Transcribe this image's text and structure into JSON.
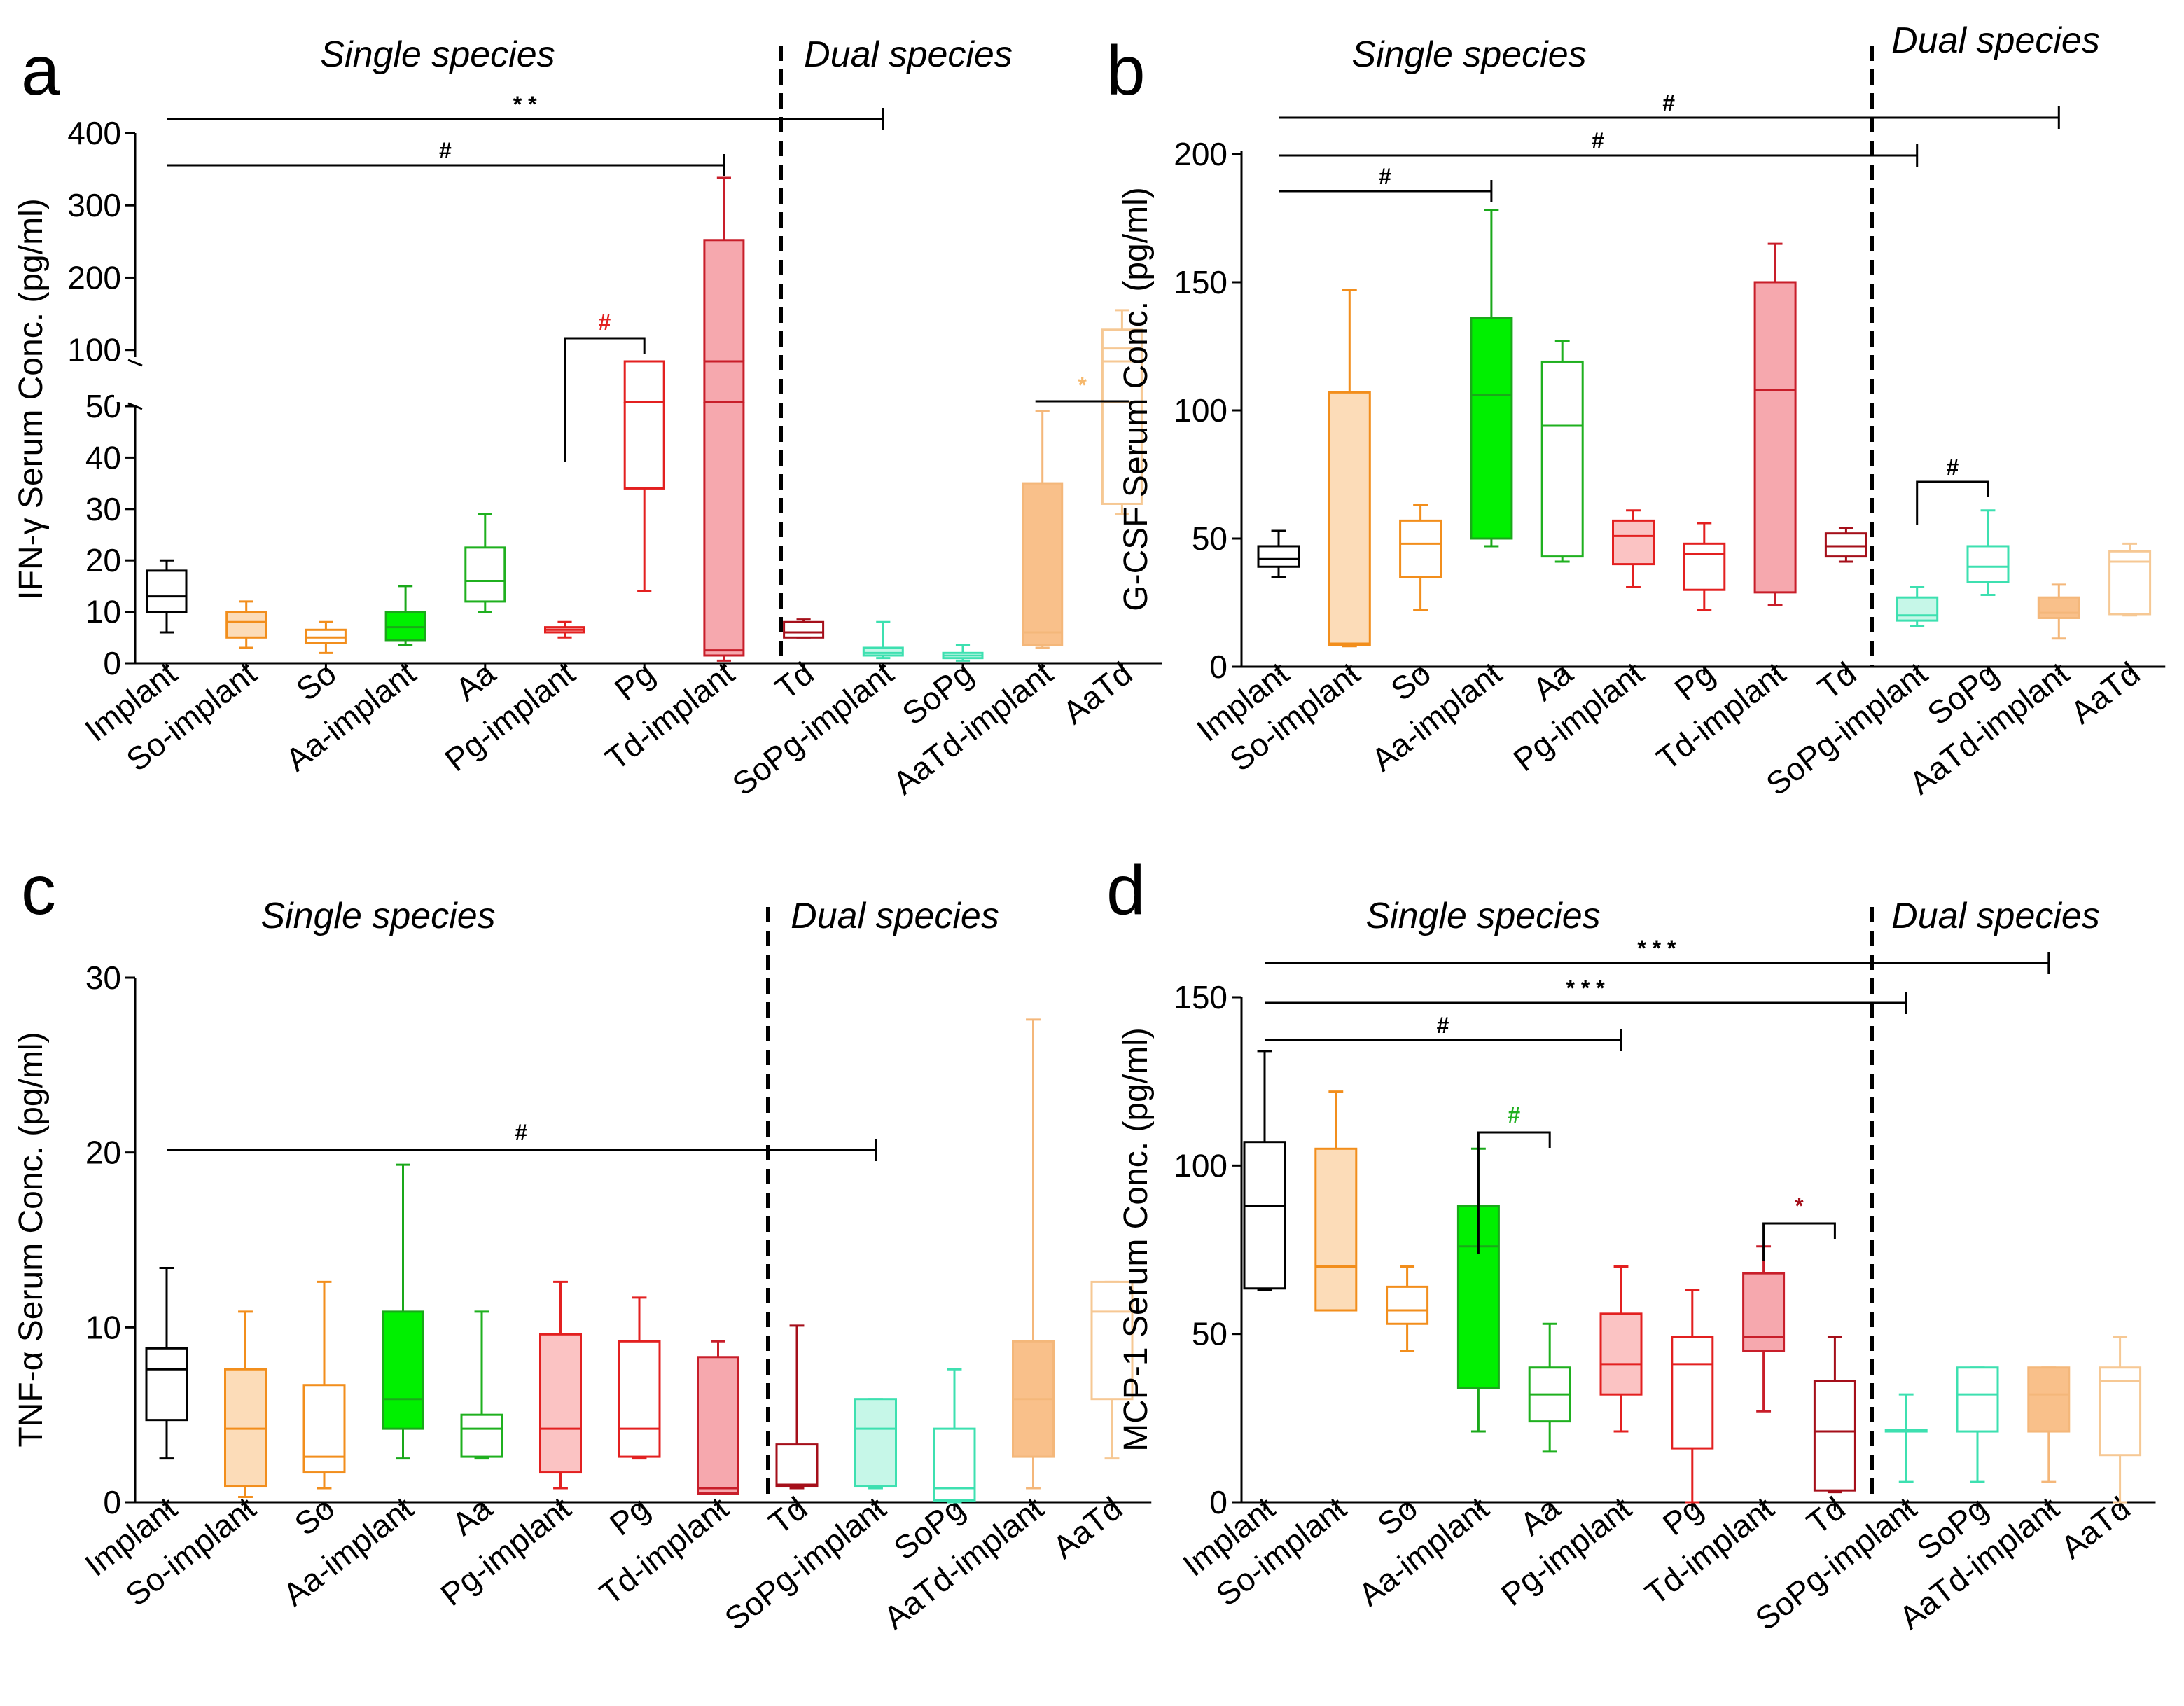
{
  "categories": [
    "Implant",
    "So-implant",
    "So",
    "Aa-implant",
    "Aa",
    "Pg-implant",
    "Pg",
    "Td-implant",
    "Td",
    "SoPg-implant",
    "SoPg",
    "AaTd-implant",
    "AaTd"
  ],
  "colors": {
    "Implant": {
      "stroke": "#000000",
      "fill": "none"
    },
    "So-implant": {
      "stroke": "#f28e1c",
      "fill": "#fcdcb8"
    },
    "So": {
      "stroke": "#f28e1c",
      "fill": "none"
    },
    "Aa-implant": {
      "stroke": "#1aa81a",
      "fill": "#00f000"
    },
    "Aa": {
      "stroke": "#1fb01f",
      "fill": "none"
    },
    "Pg-implant": {
      "stroke": "#e32020",
      "fill": "#fbc3c3"
    },
    "Pg": {
      "stroke": "#e32020",
      "fill": "none"
    },
    "Td-implant": {
      "stroke": "#c81e2a",
      "fill": "#f6a8ae"
    },
    "Td": {
      "stroke": "#a50f1a",
      "fill": "none"
    },
    "SoPg-implant": {
      "stroke": "#3de0b0",
      "fill": "#c6f7e8"
    },
    "SoPg": {
      "stroke": "#3de0b0",
      "fill": "none"
    },
    "AaTd-implant": {
      "stroke": "#f4b77a",
      "fill": "#f9c08a"
    },
    "AaTd": {
      "stroke": "#f6c894",
      "fill": "none"
    }
  },
  "chart_data": [
    {
      "panel_label": "a",
      "type": "box",
      "ylabel": "IFN-γ Serum Conc. (pg/ml)",
      "region_left": "Single species",
      "region_right": "Dual species",
      "broken_axis": true,
      "ylim_lower": [
        0,
        50
      ],
      "ylim_upper": [
        90,
        400
      ],
      "yticks_lower": [
        "0",
        "10",
        "20",
        "30",
        "40",
        "50"
      ],
      "yticks_upper": [
        "100",
        "200",
        "300",
        "400"
      ],
      "boxes": [
        {
          "min": 6,
          "q1": 10,
          "med": 13,
          "q3": 18,
          "max": 20
        },
        {
          "min": 3,
          "q1": 5,
          "med": 8,
          "q3": 10,
          "max": 12
        },
        {
          "min": 2,
          "q1": 4,
          "med": 5,
          "q3": 6.5,
          "max": 8
        },
        {
          "min": 3.5,
          "q1": 4.5,
          "med": 7,
          "q3": 10,
          "max": 15
        },
        {
          "min": 10,
          "q1": 12,
          "med": 16,
          "q3": 22.5,
          "max": 29
        },
        {
          "min": 5,
          "q1": 6,
          "med": 6.5,
          "q3": 7,
          "max": 8
        },
        {
          "min": 14,
          "q1": 34,
          "med": 80,
          "q3": 82,
          "max": 85
        },
        {
          "min": 0.5,
          "q1": 1.5,
          "med": 2.5,
          "q3": 252,
          "max": 338
        },
        {
          "min": 5,
          "q1": 5,
          "med": 6,
          "q3": 8,
          "max": 8.5
        },
        {
          "min": 1,
          "q1": 1.5,
          "med": 2,
          "q3": 3,
          "max": 8
        },
        {
          "min": 0.5,
          "q1": 1,
          "med": 1.5,
          "q3": 2,
          "max": 3.5
        },
        {
          "min": 3,
          "q1": 3.5,
          "med": 6,
          "q3": 35,
          "max": 49
        },
        {
          "min": 29,
          "q1": 31,
          "med": 102,
          "q3": 128,
          "max": 155
        }
      ],
      "comparisons": [
        {
          "label": "* *",
          "from": "Implant",
          "to": "SoPg-implant",
          "color": "#000000"
        },
        {
          "label": "#",
          "from": "Implant",
          "to": "Td-implant",
          "color": "#000000"
        },
        {
          "label": "#",
          "from": "Pg-implant",
          "to": "Pg",
          "color": "#e32020"
        },
        {
          "label": "*",
          "from": "AaTd-implant",
          "to": "AaTd",
          "color": "#f6b86c"
        }
      ]
    },
    {
      "panel_label": "b",
      "type": "box",
      "ylabel": "G-CSF Serum Conc. (pg/ml)",
      "region_left": "Single species",
      "region_right": "Dual species",
      "ylim": [
        0,
        200
      ],
      "yticks": [
        "0",
        "50",
        "100",
        "150",
        "200"
      ],
      "boxes": [
        {
          "min": 35,
          "q1": 39,
          "med": 42,
          "q3": 47,
          "max": 53
        },
        {
          "min": 8,
          "q1": 8.5,
          "med": 9,
          "q3": 107,
          "max": 147
        },
        {
          "min": 22,
          "q1": 35,
          "med": 48,
          "q3": 57,
          "max": 63
        },
        {
          "min": 47,
          "q1": 50,
          "med": 106,
          "q3": 136,
          "max": 178
        },
        {
          "min": 41,
          "q1": 43,
          "med": 94,
          "q3": 119,
          "max": 127
        },
        {
          "min": 31,
          "q1": 40,
          "med": 51,
          "q3": 57,
          "max": 61
        },
        {
          "min": 22,
          "q1": 30,
          "med": 44,
          "q3": 48,
          "max": 56
        },
        {
          "min": 24,
          "q1": 29,
          "med": 108,
          "q3": 150,
          "max": 165
        },
        {
          "min": 41,
          "q1": 43,
          "med": 47,
          "q3": 52,
          "max": 54
        },
        {
          "min": 16,
          "q1": 18,
          "med": 20,
          "q3": 27,
          "max": 31
        },
        {
          "min": 28,
          "q1": 33,
          "med": 39,
          "q3": 47,
          "max": 61
        },
        {
          "min": 11,
          "q1": 19,
          "med": 21,
          "q3": 27,
          "max": 32
        },
        {
          "min": 20,
          "q1": 20.5,
          "med": 41,
          "q3": 45,
          "max": 48
        }
      ],
      "comparisons": [
        {
          "label": "#",
          "from": "Implant",
          "to": "AaTd-implant",
          "color": "#000000"
        },
        {
          "label": "#",
          "from": "Implant",
          "to": "SoPg-implant",
          "color": "#000000"
        },
        {
          "label": "#",
          "from": "Implant",
          "to": "Aa-implant",
          "color": "#000000"
        },
        {
          "label": "#",
          "from": "SoPg-implant",
          "to": "SoPg",
          "color": "#000000"
        }
      ]
    },
    {
      "panel_label": "c",
      "type": "box",
      "ylabel": "TNF-α Serum Conc. (pg/ml)",
      "region_left": "Single species",
      "region_right": "Dual species",
      "ylim": [
        0,
        30
      ],
      "yticks": [
        "0",
        "10",
        "20",
        "30"
      ],
      "boxes": [
        {
          "min": 2.5,
          "q1": 4.7,
          "med": 7.6,
          "q3": 8.8,
          "max": 13.4
        },
        {
          "min": 0.3,
          "q1": 0.9,
          "med": 4.2,
          "q3": 7.6,
          "max": 10.9
        },
        {
          "min": 0.8,
          "q1": 1.7,
          "med": 2.6,
          "q3": 6.7,
          "max": 12.6
        },
        {
          "min": 2.5,
          "q1": 4.2,
          "med": 5.9,
          "q3": 10.9,
          "max": 19.3
        },
        {
          "min": 2.5,
          "q1": 2.6,
          "med": 4.2,
          "q3": 5,
          "max": 10.9
        },
        {
          "min": 0.8,
          "q1": 1.7,
          "med": 4.2,
          "q3": 9.6,
          "max": 12.6
        },
        {
          "min": 2.5,
          "q1": 2.6,
          "med": 4.2,
          "q3": 9.2,
          "max": 11.7
        },
        {
          "min": 0.5,
          "q1": 0.5,
          "med": 0.8,
          "q3": 8.3,
          "max": 9.2
        },
        {
          "min": 0.8,
          "q1": 0.9,
          "med": 1,
          "q3": 3.3,
          "max": 10.1
        },
        {
          "min": 0.8,
          "q1": 0.9,
          "med": 4.2,
          "q3": 5.9,
          "max": 5.9
        },
        {
          "min": 0,
          "q1": 0.1,
          "med": 0.8,
          "q3": 4.2,
          "max": 7.6
        },
        {
          "min": 0.8,
          "q1": 2.6,
          "med": 5.9,
          "q3": 9.2,
          "max": 27.6
        },
        {
          "min": 2.5,
          "q1": 5.9,
          "med": 10.9,
          "q3": 12.6,
          "max": 12.6
        }
      ],
      "comparisons": [
        {
          "label": "#",
          "from": "Implant",
          "to": "SoPg-implant",
          "color": "#000000"
        }
      ]
    },
    {
      "panel_label": "d",
      "type": "box",
      "ylabel": "MCP-1 Serum Conc. (pg/ml)",
      "region_left": "Single species",
      "region_right": "Dual species",
      "ylim": [
        0,
        150
      ],
      "yticks": [
        "0",
        "50",
        "100",
        "150"
      ],
      "boxes": [
        {
          "min": 63,
          "q1": 63.5,
          "med": 88,
          "q3": 107,
          "max": 134
        },
        {
          "min": 57,
          "q1": 57,
          "med": 70,
          "q3": 105,
          "max": 122
        },
        {
          "min": 45,
          "q1": 53,
          "med": 57,
          "q3": 64,
          "max": 70
        },
        {
          "min": 21,
          "q1": 34,
          "med": 76,
          "q3": 88,
          "max": 105
        },
        {
          "min": 15,
          "q1": 24,
          "med": 32,
          "q3": 40,
          "max": 53
        },
        {
          "min": 21,
          "q1": 32,
          "med": 41,
          "q3": 56,
          "max": 70
        },
        {
          "min": 0,
          "q1": 16,
          "med": 41,
          "q3": 49,
          "max": 63
        },
        {
          "min": 27,
          "q1": 45,
          "med": 49,
          "q3": 68,
          "max": 76
        },
        {
          "min": 3,
          "q1": 3.5,
          "med": 21,
          "q3": 36,
          "max": 49
        },
        {
          "min": 6,
          "q1": 21,
          "med": 21,
          "q3": 21.5,
          "max": 32
        },
        {
          "min": 6,
          "q1": 21,
          "med": 32,
          "q3": 40,
          "max": 40
        },
        {
          "min": 6,
          "q1": 21,
          "med": 32,
          "q3": 40,
          "max": 40
        },
        {
          "min": 0,
          "q1": 14,
          "med": 36,
          "q3": 40,
          "max": 49
        }
      ],
      "comparisons": [
        {
          "label": "* * *",
          "from": "Implant",
          "to": "AaTd-implant",
          "color": "#000000"
        },
        {
          "label": "* * *",
          "from": "Implant",
          "to": "SoPg-implant",
          "color": "#000000"
        },
        {
          "label": "#",
          "from": "Implant",
          "to": "Pg-implant",
          "color": "#000000"
        },
        {
          "label": "#",
          "from": "Aa-implant",
          "to": "Aa",
          "color": "#1fb01f"
        },
        {
          "label": "*",
          "from": "Td-implant",
          "to": "Td",
          "color": "#a50f1a"
        }
      ]
    }
  ]
}
